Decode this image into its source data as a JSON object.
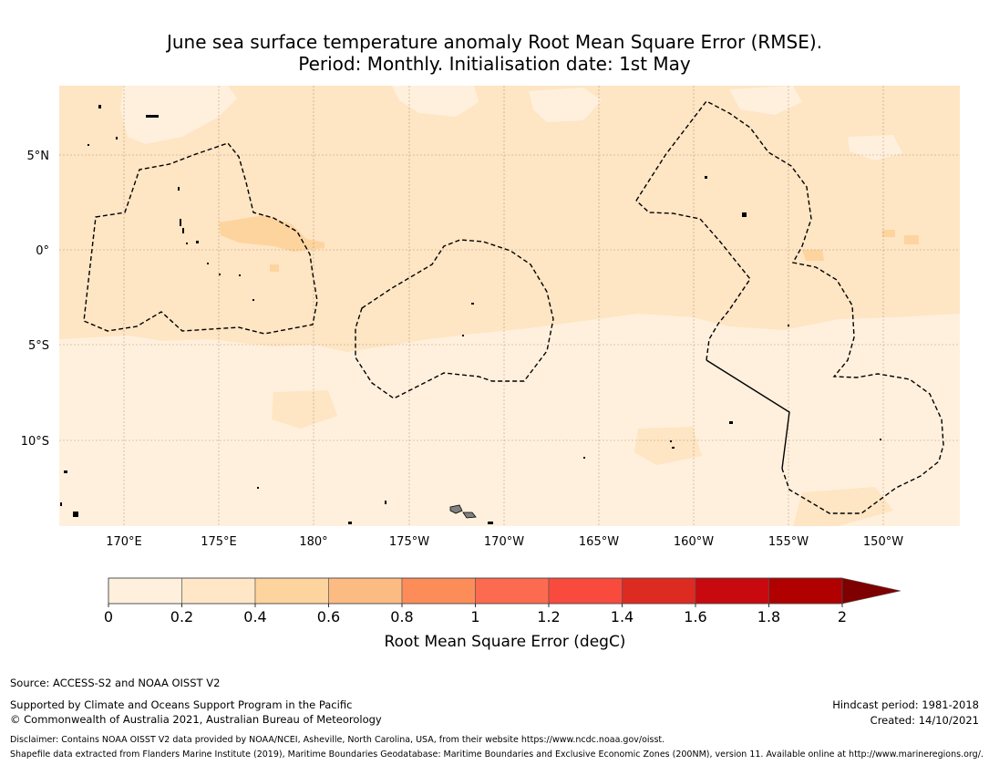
{
  "title_line1": "June sea surface temperature anomaly Root Mean Square Error (RMSE).",
  "title_line2": "Period: Monthly. Initialisation date: 1st May",
  "map": {
    "lon_labels": [
      "170°E",
      "175°E",
      "180°",
      "175°W",
      "170°W",
      "165°W",
      "160°W",
      "155°W",
      "150°W"
    ],
    "lat_labels": [
      "5°N",
      "0°",
      "5°S",
      "10°S"
    ],
    "colors": {
      "ocean_base": "#fee5c4",
      "low_band": "#fff0dd",
      "mid_patch": "#fdd49e",
      "land": "#808080"
    }
  },
  "colorbar": {
    "ticks": [
      "0",
      "0.2",
      "0.4",
      "0.6",
      "0.8",
      "1",
      "1.2",
      "1.4",
      "1.6",
      "1.8",
      "2"
    ],
    "colors": [
      "#fff0de",
      "#fee6c6",
      "#fdd49e",
      "#fdbb84",
      "#fc8d59",
      "#fc6a4f",
      "#f94a3e",
      "#dd2b22",
      "#c8090f",
      "#b00000",
      "#7f0000"
    ],
    "label": "Root Mean Square Error (degC)"
  },
  "footer": {
    "source": "Source: ACCESS-S2 and NOAA OISST V2",
    "supported": "Supported by Climate and Oceans Support Program in the Pacific",
    "copyright": "© Commonwealth of Australia 2021, Australian Bureau of Meteorology",
    "hindcast": "Hindcast period: 1981-2018",
    "created": "Created: 14/10/2021",
    "disclaimer": "Disclaimer: Contains NOAA OISST V2 data provided by NOAA/NCEI, Asheville, North Carolina, USA, from their website https://www.ncdc.noaa.gov/oisst.",
    "shapefile": "Shapefile data extracted from Flanders Marine Institute (2019), Maritime Boundaries Geodatabase: Maritime Boundaries and Exclusive Economic Zones (200NM), version 11. Available online at http://www.marineregions.org/."
  }
}
